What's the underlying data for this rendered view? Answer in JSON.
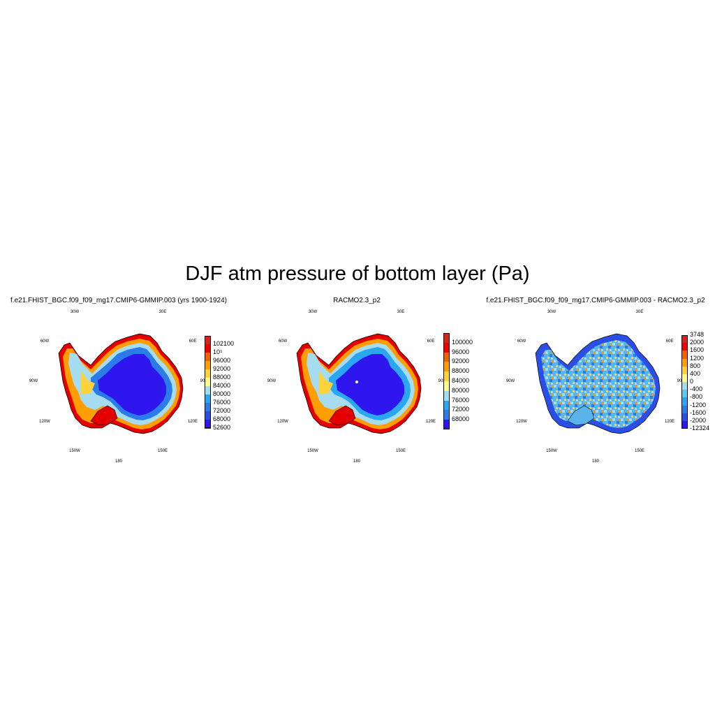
{
  "title": "DJF atm pressure of bottom layer (Pa)",
  "panels": [
    {
      "title": "f.e21.FHIST_BGC.f09_f09_mg17.CMIP6-GMMIP.003 (yrs 1900-1924)",
      "longitude_labels": [
        "30W",
        "30E",
        "60W",
        "60E",
        "90W",
        "90E",
        "120W",
        "120E",
        "150W",
        "150E",
        "180"
      ],
      "colorbar": {
        "ticks": [
          "102100",
          "10⁵",
          "96000",
          "92000",
          "88000",
          "84000",
          "80000",
          "76000",
          "72000",
          "68000",
          "52600"
        ],
        "colors": [
          "#d4251c",
          "#ee0000",
          "#f26000",
          "#ff9e00",
          "#ffd23a",
          "#fffa8c",
          "#a6dcf0",
          "#2ba6f0",
          "#2b7ce9",
          "#2b4fe6",
          "#3016ee"
        ]
      }
    },
    {
      "title": "RACMO2.3_p2",
      "longitude_labels": [
        "30W",
        "30E",
        "60W",
        "60E",
        "90W",
        "90E",
        "120W",
        "120E",
        "150W",
        "150E",
        "180"
      ],
      "colorbar": {
        "ticks": [
          "100000",
          "96000",
          "92000",
          "88000",
          "84000",
          "80000",
          "76000",
          "72000",
          "68000"
        ],
        "colors": [
          "#d4251c",
          "#ee0000",
          "#f26000",
          "#ff9e00",
          "#ffd23a",
          "#fffa8c",
          "#a6dcf0",
          "#2ba6f0",
          "#2b7ce9",
          "#3016ee"
        ]
      }
    },
    {
      "title": "f.e21.FHIST_BGC.f09_f09_mg17.CMIP6-GMMIP.003 - RACMO2.3_p2",
      "longitude_labels": [
        "30W",
        "30E",
        "60W",
        "60E",
        "90W",
        "90E",
        "120W",
        "120E",
        "150W",
        "150E",
        "180"
      ],
      "colorbar": {
        "ticks": [
          "3748",
          "2000",
          "1600",
          "1200",
          "800",
          "400",
          "0",
          "-400",
          "-800",
          "-1200",
          "-1600",
          "-2000",
          "-12324"
        ],
        "colors": [
          "#d4251c",
          "#ee0000",
          "#f26000",
          "#ff9e00",
          "#ffd23a",
          "#fffa8c",
          "#a6dcf0",
          "#5ac8f0",
          "#2ba6f0",
          "#2b7ce9",
          "#2b4fe6",
          "#3016ee"
        ]
      }
    }
  ]
}
